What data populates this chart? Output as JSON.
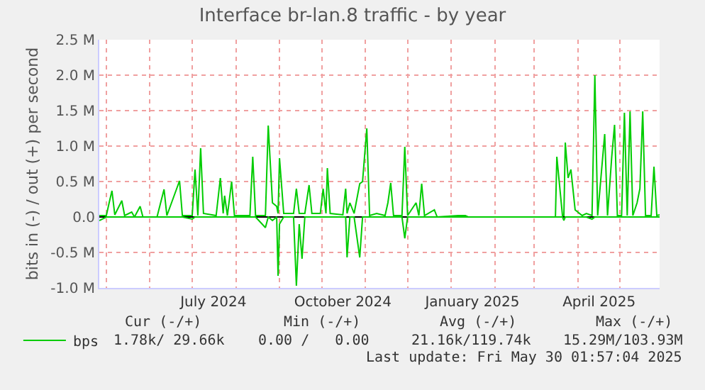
{
  "chart_data": {
    "type": "line",
    "title": "Interface br-lan.8 traffic - by year",
    "ylabel": "bits in (-) / out (+) per second",
    "x": [
      "2024-04-26",
      "2024-05-01",
      "2024-05-03",
      "2024-05-05",
      "2024-05-07",
      "2024-05-12",
      "2024-05-14",
      "2024-05-19",
      "2024-05-21",
      "2024-05-25",
      "2024-05-27",
      "2024-06-06",
      "2024-06-11",
      "2024-06-13",
      "2024-06-22",
      "2024-06-24",
      "2024-07-01",
      "2024-07-03",
      "2024-07-05",
      "2024-07-07",
      "2024-07-09",
      "2024-07-18",
      "2024-07-21",
      "2024-07-23",
      "2024-07-24",
      "2024-07-26",
      "2024-07-29",
      "2024-07-31",
      "2024-08-11",
      "2024-08-13",
      "2024-08-15",
      "2024-08-22",
      "2024-08-24",
      "2024-08-27",
      "2024-08-30",
      "2024-08-31",
      "2024-09-01",
      "2024-09-04",
      "2024-09-11",
      "2024-09-13",
      "2024-09-15",
      "2024-09-17",
      "2024-09-19",
      "2024-09-22",
      "2024-09-24",
      "2024-09-30",
      "2024-10-02",
      "2024-10-04",
      "2024-10-05",
      "2024-10-07",
      "2024-10-16",
      "2024-10-18",
      "2024-10-19",
      "2024-10-21",
      "2024-10-24",
      "2024-10-28",
      "2024-10-30",
      "2024-11-02",
      "2024-11-04",
      "2024-11-09",
      "2024-11-15",
      "2024-11-17",
      "2024-11-19",
      "2024-11-21",
      "2024-11-27",
      "2024-11-29",
      "2024-12-01",
      "2024-12-07",
      "2024-12-09",
      "2024-12-11",
      "2024-12-13",
      "2024-12-20",
      "2024-12-22",
      "2025-01-06",
      "2025-01-11",
      "2025-01-13",
      "2025-03-16",
      "2025-03-17",
      "2025-03-21",
      "2025-03-22",
      "2025-03-23",
      "2025-03-25",
      "2025-03-27",
      "2025-03-30",
      "2025-04-04",
      "2025-04-07",
      "2025-04-11",
      "2025-04-13",
      "2025-04-15",
      "2025-04-20",
      "2025-04-22",
      "2025-04-25",
      "2025-04-27",
      "2025-04-29",
      "2025-05-02",
      "2025-05-04",
      "2025-05-06",
      "2025-05-08",
      "2025-05-10",
      "2025-05-13",
      "2025-05-15",
      "2025-05-17",
      "2025-05-19",
      "2025-05-23",
      "2025-05-25",
      "2025-05-27",
      "2025-05-29"
    ],
    "series": [
      {
        "name": "bps",
        "color": "#00cc00",
        "values": [
          20000,
          20000,
          200000,
          370000,
          30000,
          230000,
          20000,
          70000,
          0,
          150000,
          0,
          0,
          390000,
          20000,
          510000,
          20000,
          20000,
          670000,
          20000,
          970000,
          50000,
          20000,
          550000,
          50000,
          300000,
          20000,
          500000,
          20000,
          20000,
          850000,
          20000,
          20000,
          1290000,
          200000,
          150000,
          50000,
          830000,
          50000,
          50000,
          400000,
          50000,
          50000,
          50000,
          450000,
          50000,
          50000,
          400000,
          50000,
          690000,
          50000,
          30000,
          400000,
          50000,
          200000,
          50000,
          470000,
          500000,
          1250000,
          20000,
          50000,
          20000,
          200000,
          480000,
          20000,
          20000,
          990000,
          20000,
          200000,
          20000,
          470000,
          20000,
          100000,
          0,
          20000,
          20000,
          0,
          0,
          850000,
          20000,
          20000,
          1050000,
          550000,
          670000,
          100000,
          20000,
          50000,
          20000,
          2000000,
          20000,
          1170000,
          20000,
          850000,
          1300000,
          20000,
          20000,
          1470000,
          20000,
          1490000,
          20000,
          200000,
          400000,
          1490000,
          20000,
          20000,
          710000,
          20000,
          30000
        ]
      },
      {
        "color": "#00cc00",
        "values": [
          -50000,
          0,
          0,
          0,
          0,
          0,
          0,
          0,
          0,
          0,
          0,
          0,
          0,
          0,
          0,
          0,
          -30000,
          0,
          0,
          0,
          0,
          0,
          0,
          0,
          0,
          0,
          0,
          0,
          0,
          0,
          0,
          -150000,
          0,
          -50000,
          0,
          -830000,
          -100000,
          0,
          0,
          -970000,
          -100000,
          -590000,
          0,
          0,
          0,
          0,
          0,
          0,
          0,
          0,
          0,
          0,
          -570000,
          0,
          0,
          -570000,
          0,
          0,
          0,
          0,
          0,
          0,
          0,
          0,
          0,
          -300000,
          0,
          0,
          0,
          0,
          0,
          0,
          0,
          0,
          0,
          0,
          0,
          0,
          0,
          -50000,
          0,
          0,
          0,
          0,
          0,
          0,
          -30000,
          0,
          0,
          0,
          0,
          0,
          0,
          0,
          0,
          0,
          0,
          0,
          0,
          0,
          0,
          0,
          0,
          0,
          0,
          0,
          0
        ]
      }
    ],
    "xlim": [
      "2024-04-26",
      "2025-05-29"
    ],
    "xticks": [
      {
        "value": "2024-07-16",
        "label": "July 2024"
      },
      {
        "value": "2024-10-16",
        "label": "October 2024"
      },
      {
        "value": "2025-01-16",
        "label": "January 2025"
      },
      {
        "value": "2025-04-16",
        "label": "April 2025"
      }
    ],
    "ylim": [
      -1000000,
      2500000
    ],
    "yticks": [
      {
        "value": -1000000,
        "label": "-1.0 M"
      },
      {
        "value": -500000,
        "label": "-0.5 M"
      },
      {
        "value": 0,
        "label": "0.0"
      },
      {
        "value": 500000,
        "label": "0.5 M"
      },
      {
        "value": 1000000,
        "label": "1.0 M"
      },
      {
        "value": 1500000,
        "label": "1.5 M"
      },
      {
        "value": 2000000,
        "label": "2.0 M"
      },
      {
        "value": 2500000,
        "label": "2.5 M"
      }
    ],
    "grid": true,
    "legend": "bottom left",
    "marker": "none",
    "annotations": [
      "Cur (-/+)",
      "Min (-/+)",
      "Avg (-/+)",
      "Max (-/+)",
      "1.78k/ 29.66k",
      "0.00 /   0.00",
      "21.16k/119.74k",
      "15.29M/103.93M",
      "Last update: Fri May 30 01:57:04 2025"
    ]
  }
}
